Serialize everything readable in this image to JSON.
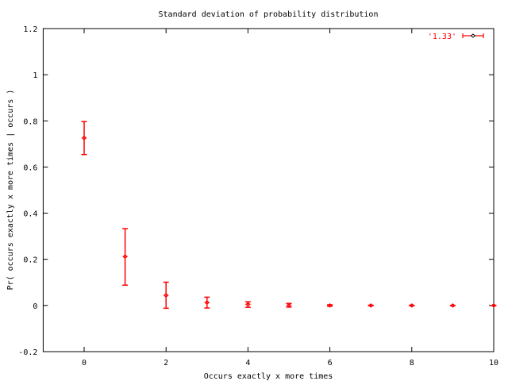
{
  "chart_data": {
    "type": "scatter",
    "title": "Standard deviation of probability distribution",
    "xlabel": "Occurs exactly x more times",
    "ylabel": "Pr( occurs exactly x more times | occurs )",
    "xlim": [
      -1,
      10
    ],
    "ylim": [
      -0.2,
      1.2
    ],
    "xticks": [
      0,
      2,
      4,
      6,
      8,
      10
    ],
    "yticks": [
      -0.2,
      0,
      0.2,
      0.4,
      0.6,
      0.8,
      1,
      1.2
    ],
    "grid": false,
    "legend_position": "top-right",
    "series": [
      {
        "name": "'1.33'",
        "style": "yerrorbars",
        "color": "#ff0000",
        "points": [
          {
            "x": 0,
            "y": 0.726,
            "ylow": 0.654,
            "yhigh": 0.797
          },
          {
            "x": 1,
            "y": 0.212,
            "ylow": 0.088,
            "yhigh": 0.333
          },
          {
            "x": 2,
            "y": 0.044,
            "ylow": -0.012,
            "yhigh": 0.101
          },
          {
            "x": 3,
            "y": 0.013,
            "ylow": -0.011,
            "yhigh": 0.036
          },
          {
            "x": 4,
            "y": 0.005,
            "ylow": -0.008,
            "yhigh": 0.016
          },
          {
            "x": 5,
            "y": 0.001,
            "ylow": -0.007,
            "yhigh": 0.009
          },
          {
            "x": 6,
            "y": 0.0,
            "ylow": -0.003,
            "yhigh": 0.003
          },
          {
            "x": 7,
            "y": 0.0,
            "ylow": -0.001,
            "yhigh": 0.001
          },
          {
            "x": 8,
            "y": 0.0,
            "ylow": -0.001,
            "yhigh": 0.001
          },
          {
            "x": 9,
            "y": 0.0,
            "ylow": 0.0,
            "yhigh": 0.0
          },
          {
            "x": 10,
            "y": 0.0,
            "ylow": 0.0,
            "yhigh": 0.0
          }
        ]
      }
    ]
  }
}
